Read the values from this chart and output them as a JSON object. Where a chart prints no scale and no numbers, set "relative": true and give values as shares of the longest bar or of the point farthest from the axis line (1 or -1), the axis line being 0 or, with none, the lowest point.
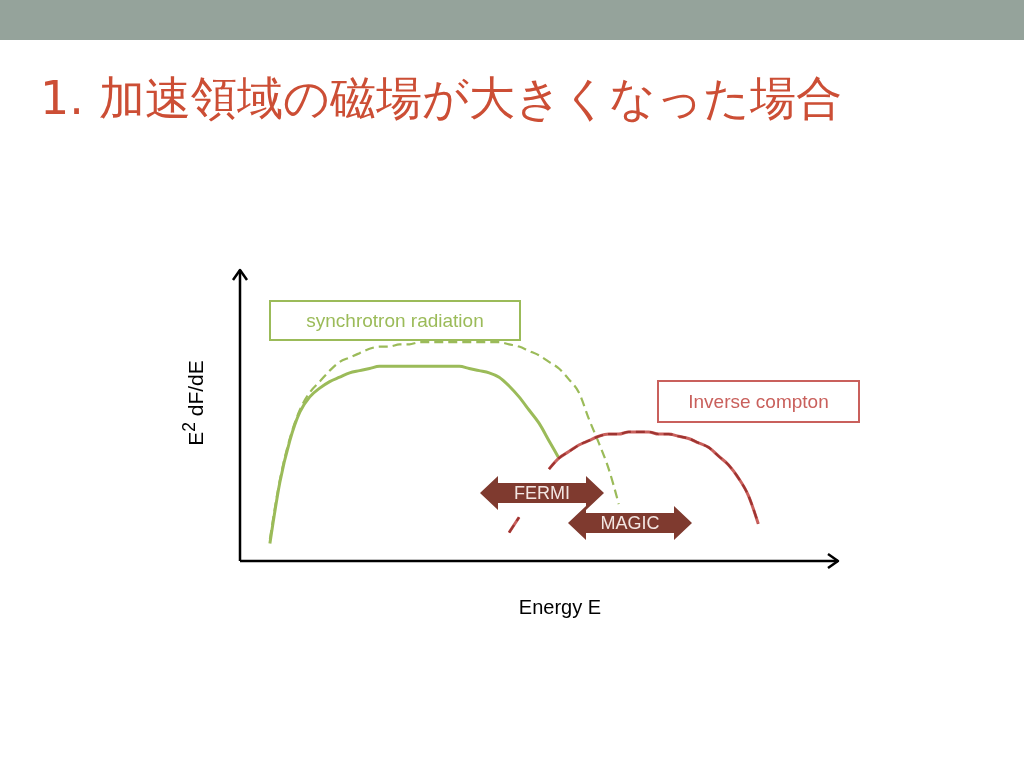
{
  "chart_data": {
    "type": "line",
    "title": "1. 加速領域の磁場が大きくなった場合",
    "xlabel": "Energy E",
    "ylabel": "E$^{2}$ dF/dE",
    "relative": true,
    "marker": "none",
    "categories": [
      null,
      null,
      null,
      null,
      null,
      null,
      null,
      null,
      null,
      null,
      null,
      null,
      null,
      null,
      null,
      null,
      null,
      null,
      null,
      null,
      null,
      null,
      null,
      null,
      null,
      null,
      null,
      null,
      null,
      null,
      null,
      null,
      null,
      null,
      null,
      null,
      null,
      null,
      null,
      null,
      null,
      null,
      null,
      null,
      null,
      null,
      null,
      null,
      null,
      null,
      null,
      null,
      null,
      null,
      null,
      null,
      null,
      null,
      null,
      null,
      null
    ],
    "series": [
      {
        "name": "synchrotron radiation",
        "color": "#9bbb59",
        "line_style": "solid",
        "values": [
          null,
          null,
          null,
          0.08,
          0.36,
          0.55,
          0.68,
          0.75,
          0.79,
          0.82,
          0.84,
          0.86,
          0.87,
          0.88,
          0.89,
          0.89,
          0.89,
          0.89,
          0.89,
          0.89,
          0.89,
          0.89,
          0.89,
          0.88,
          0.87,
          0.86,
          0.84,
          0.8,
          0.75,
          0.69,
          0.63,
          0.55,
          0.47,
          null,
          null,
          null,
          null,
          null,
          null,
          null,
          null,
          null,
          null,
          null,
          null,
          null,
          null,
          null,
          null,
          null,
          null,
          null,
          null,
          null,
          null,
          null,
          null,
          null,
          null,
          null,
          null
        ]
      },
      {
        "color": "#9bbb59",
        "line_style": "dashed",
        "values": [
          null,
          null,
          null,
          0.1,
          0.37,
          0.56,
          0.69,
          0.77,
          0.82,
          0.87,
          0.91,
          0.93,
          0.95,
          0.97,
          0.98,
          0.98,
          0.99,
          0.99,
          1,
          1,
          1,
          1,
          1,
          1,
          1,
          1,
          1,
          0.99,
          0.98,
          0.96,
          0.94,
          0.91,
          0.88,
          0.83,
          0.77,
          0.65,
          0.54,
          0.42,
          0.26,
          null,
          null,
          null,
          null,
          null,
          null,
          null,
          null,
          null,
          null,
          null,
          null,
          null,
          null,
          null,
          null,
          null,
          null,
          null,
          null,
          null,
          null
        ]
      },
      {
        "name": "Inverse compton",
        "color": "#c9605c",
        "line_style": "solid",
        "values": [
          null,
          null,
          null,
          null,
          null,
          null,
          null,
          null,
          null,
          null,
          null,
          null,
          null,
          null,
          null,
          null,
          null,
          null,
          null,
          null,
          null,
          null,
          null,
          null,
          null,
          null,
          null,
          0.13,
          0.2,
          null,
          null,
          0.42,
          0.47,
          0.5,
          0.53,
          0.55,
          0.57,
          0.58,
          0.58,
          0.59,
          0.59,
          0.59,
          0.58,
          0.58,
          0.57,
          0.56,
          0.54,
          0.52,
          0.48,
          0.44,
          0.38,
          0.3,
          0.17,
          null,
          null,
          null,
          null,
          null,
          null,
          null,
          null
        ]
      },
      {
        "color": "#9e3431",
        "line_style": "dashed",
        "values": [
          null,
          null,
          null,
          null,
          null,
          null,
          null,
          null,
          null,
          null,
          null,
          null,
          null,
          null,
          null,
          null,
          null,
          null,
          null,
          null,
          null,
          null,
          null,
          null,
          null,
          null,
          null,
          0.13,
          0.2,
          null,
          null,
          0.42,
          0.47,
          0.5,
          0.53,
          0.55,
          0.57,
          0.58,
          0.58,
          0.59,
          0.59,
          0.59,
          0.58,
          0.58,
          0.57,
          0.56,
          0.54,
          0.52,
          0.48,
          0.44,
          0.38,
          0.3,
          0.17,
          null,
          null,
          null,
          null,
          null,
          null,
          null,
          null
        ]
      }
    ],
    "annotations": [
      "FERMI",
      "MAGIC"
    ]
  }
}
